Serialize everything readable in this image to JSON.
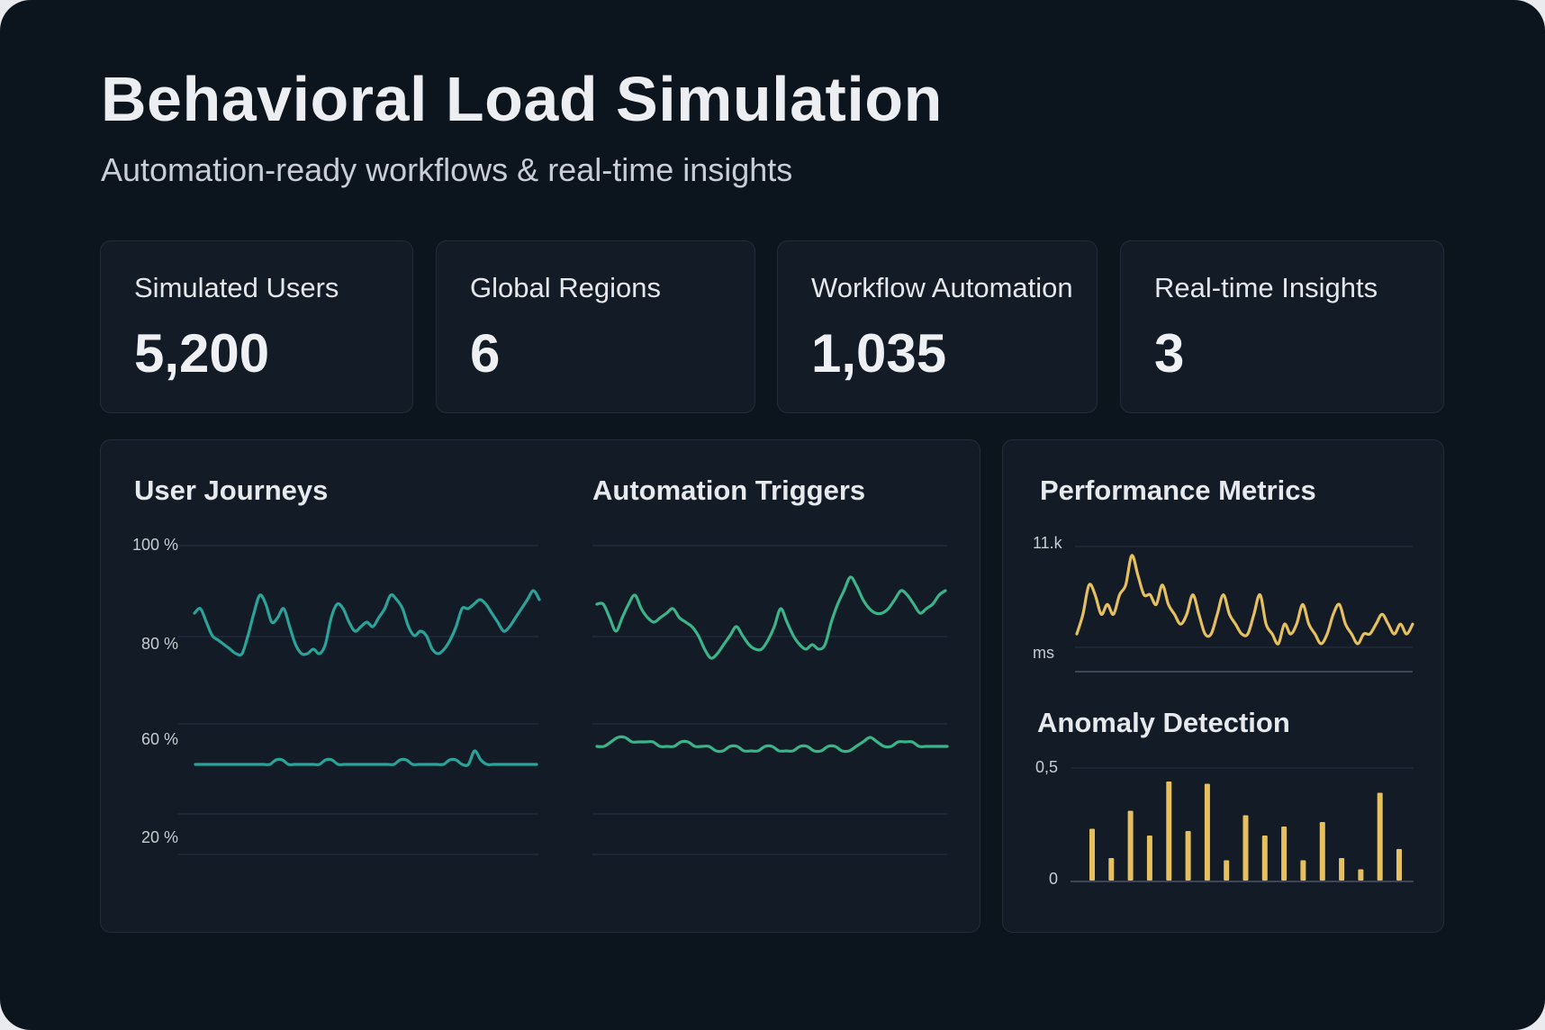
{
  "header": {
    "title": "Behavioral Load Simulation",
    "subtitle": "Automation-ready workflows & real-time insights"
  },
  "stats": [
    {
      "label": "Simulated Users",
      "value": "5,200"
    },
    {
      "label": "Global Regions",
      "value": "6"
    },
    {
      "label": "Workflow Automation",
      "value": "1,035"
    },
    {
      "label": "Real-time Insights",
      "value": "3"
    }
  ],
  "colors": {
    "background": "#0c141e",
    "card": "#121b26",
    "teal": "#2aa39a",
    "green": "#3bb489",
    "amber": "#e6bf5e"
  },
  "panels": {
    "user_journeys": {
      "title": "User Journeys"
    },
    "automation_triggers": {
      "title": "Automation Triggers"
    },
    "performance_metrics": {
      "title": "Performance Metrics"
    },
    "anomaly_detection": {
      "title": "Anomaly Detection"
    }
  },
  "chart_data": [
    {
      "id": "user_journeys",
      "type": "line",
      "title": "User Journeys",
      "y_ticks": [
        "100 %",
        "80 %",
        "60 %",
        "20 %"
      ],
      "grid": true,
      "series": [
        {
          "values": [
            85,
            86,
            83,
            80,
            79,
            78,
            77,
            76,
            76,
            80,
            85,
            89,
            87,
            83,
            84,
            86,
            82,
            78,
            76,
            76,
            77,
            76,
            78,
            84,
            87,
            86,
            83,
            81,
            82,
            83,
            82,
            84,
            86,
            89,
            88,
            86,
            82,
            80,
            81,
            80,
            77,
            76,
            77,
            79,
            82,
            86,
            86,
            87,
            88,
            87,
            85,
            83,
            81,
            82,
            84,
            86,
            88,
            90,
            88
          ],
          "color": "#2aa39a"
        },
        {
          "values": [
            31,
            31,
            31,
            31,
            31,
            31,
            31,
            31,
            31,
            31,
            31,
            31,
            31,
            32,
            32,
            31,
            31,
            31,
            31,
            31,
            31,
            32,
            32,
            31,
            31,
            31,
            31,
            31,
            31,
            31,
            31,
            31,
            31,
            32,
            32,
            31,
            31,
            31,
            31,
            31,
            31,
            32,
            32,
            31,
            31,
            34,
            32,
            31,
            31,
            31,
            31,
            31,
            31,
            31,
            31,
            31
          ],
          "color": "#2aa39a"
        }
      ]
    },
    {
      "id": "automation_triggers",
      "type": "line",
      "title": "Automation Triggers",
      "grid": true,
      "series": [
        {
          "values": [
            87,
            87,
            84,
            81,
            84,
            87,
            89,
            86,
            84,
            83,
            84,
            85,
            86,
            84,
            83,
            82,
            80,
            77,
            75,
            76,
            78,
            80,
            82,
            80,
            78,
            77,
            77,
            79,
            82,
            86,
            83,
            80,
            78,
            77,
            78,
            77,
            78,
            83,
            87,
            90,
            93,
            91,
            88,
            86,
            85,
            85,
            86,
            88,
            90,
            89,
            87,
            85,
            86,
            87,
            89,
            90
          ],
          "color": "#3bb489"
        },
        {
          "values": [
            35,
            35,
            36,
            37,
            37,
            36,
            36,
            36,
            36,
            35,
            35,
            35,
            36,
            36,
            35,
            35,
            35,
            34,
            34,
            35,
            35,
            34,
            34,
            34,
            35,
            35,
            34,
            34,
            34,
            35,
            35,
            34,
            34,
            35,
            35,
            34,
            34,
            35,
            36,
            37,
            36,
            35,
            35,
            36,
            36,
            36,
            35,
            35,
            35,
            35,
            35
          ],
          "color": "#3bb489"
        }
      ]
    },
    {
      "id": "performance_metrics",
      "type": "line",
      "title": "Performance Metrics",
      "y_ticks": [
        "11.k",
        "ms"
      ],
      "grid": true,
      "series": [
        {
          "values": [
            4,
            6,
            9,
            8,
            6,
            7,
            6,
            8,
            9,
            12,
            10,
            8,
            8,
            7,
            9,
            7,
            6,
            5,
            6,
            8,
            6,
            4,
            4,
            6,
            8,
            6,
            5,
            4,
            4,
            6,
            8,
            5,
            4,
            3,
            5,
            4,
            5,
            7,
            5,
            4,
            3,
            4,
            6,
            7,
            5,
            4,
            3,
            4,
            4,
            5,
            6,
            5,
            4,
            5,
            4,
            5
          ],
          "color": "#e6bf5e"
        }
      ]
    },
    {
      "id": "anomaly_detection",
      "type": "bar",
      "title": "Anomaly Detection",
      "y_ticks": [
        "0,5",
        "0"
      ],
      "values": [
        0.23,
        0.1,
        0.31,
        0.2,
        0.44,
        0.22,
        0.43,
        0.09,
        0.29,
        0.2,
        0.24,
        0.09,
        0.26,
        0.1,
        0.05,
        0.39,
        0.14
      ],
      "color": "#e6bf5e"
    }
  ]
}
